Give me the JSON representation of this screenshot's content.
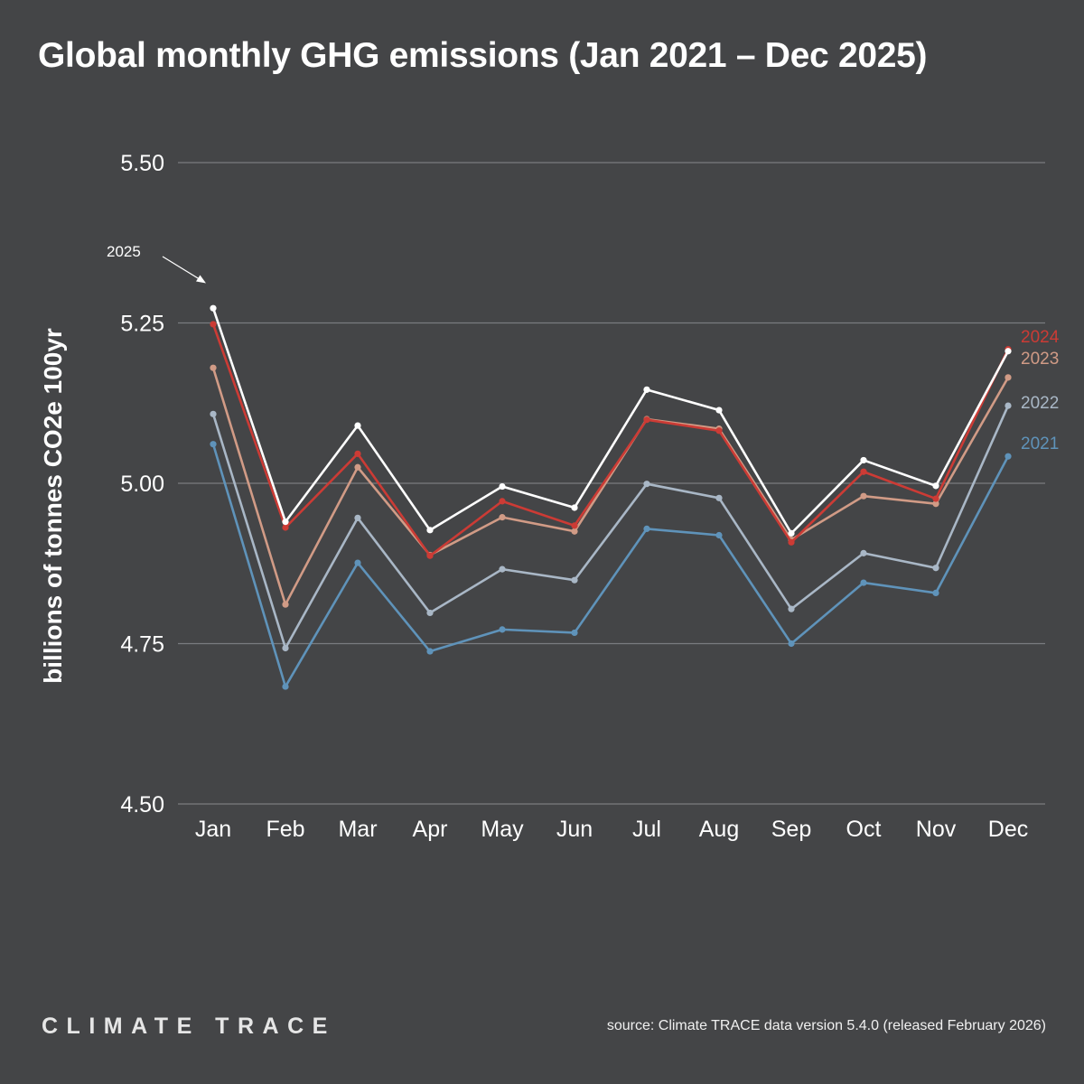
{
  "title": "Global monthly GHG emissions (Jan 2021 – Dec 2025)",
  "brand": "CLIMATE TRACE",
  "source": "source: Climate TRACE data version 5.4.0 (released February 2026)",
  "chart_data": {
    "type": "line",
    "title": "Global monthly GHG emissions (Jan 2021 – Dec 2025)",
    "xlabel": "",
    "ylabel": "billions of tonnes CO2e 100yr",
    "ylim": [
      4.5,
      5.5
    ],
    "yticks": [
      "4.50",
      "4.75",
      "5.00",
      "5.25",
      "5.50"
    ],
    "ytick_values": [
      4.5,
      4.75,
      5.0,
      5.25,
      5.5
    ],
    "grid": true,
    "categories": [
      "Jan",
      "Feb",
      "Mar",
      "Apr",
      "May",
      "Jun",
      "Jul",
      "Aug",
      "Sep",
      "Oct",
      "Nov",
      "Dec"
    ],
    "series": [
      {
        "name": "2021",
        "color": "#5f93ba",
        "label_visible": true,
        "values": [
          5.061,
          4.683,
          4.876,
          4.738,
          4.772,
          4.767,
          4.929,
          4.919,
          4.75,
          4.845,
          4.829,
          5.042
        ]
      },
      {
        "name": "2022",
        "color": "#a9b7c6",
        "label_visible": true,
        "values": [
          5.108,
          4.743,
          4.946,
          4.798,
          4.866,
          4.849,
          4.999,
          4.977,
          4.804,
          4.891,
          4.868,
          5.121
        ]
      },
      {
        "name": "2023",
        "color": "#d19b86",
        "label_visible": true,
        "values": [
          5.18,
          4.811,
          5.025,
          4.888,
          4.947,
          4.925,
          5.1,
          5.085,
          4.912,
          4.98,
          4.968,
          5.165
        ]
      },
      {
        "name": "2024",
        "color": "#cc3b35",
        "label_visible": true,
        "values": [
          5.248,
          4.931,
          5.046,
          4.887,
          4.972,
          4.934,
          5.099,
          5.082,
          4.908,
          5.018,
          4.976,
          5.209
        ]
      },
      {
        "name": "2025",
        "color": "#ffffff",
        "label_visible": false,
        "values": [
          5.273,
          4.94,
          5.09,
          4.927,
          4.995,
          4.962,
          5.146,
          5.114,
          4.922,
          5.036,
          4.996,
          5.206
        ]
      }
    ],
    "annotations": [
      {
        "text": "2025",
        "points_to": "2025 Jan"
      }
    ]
  }
}
